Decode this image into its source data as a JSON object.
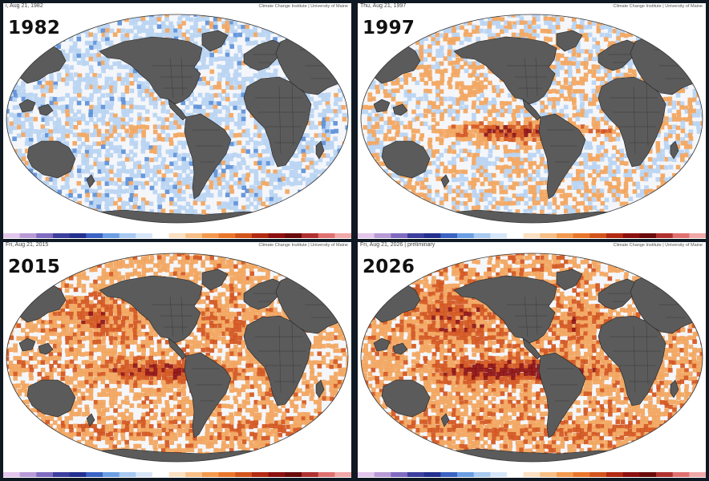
{
  "panels": [
    {
      "year": "1982",
      "date_text": "i, Aug 21, 1982",
      "credit": "Climate Change Institute | University of Maine",
      "anomaly": {
        "el_nino_strength": 0.25,
        "global_warm": 0.05
      }
    },
    {
      "year": "1997",
      "date_text": "Thu, Aug 21, 1997",
      "credit": "Climate Change Institute | University of Maine",
      "anomaly": {
        "el_nino_strength": 0.85,
        "global_warm": 0.3
      }
    },
    {
      "year": "2015",
      "date_text": "Fri, Aug 21, 2015",
      "credit": "Climate Change Institute | University of Maine",
      "anomaly": {
        "el_nino_strength": 0.7,
        "global_warm": 0.7
      }
    },
    {
      "year": "2026",
      "date_text": "Fri, Aug 21, 2026 | preliminary",
      "credit": "Climate Change Institute | University of Maine",
      "anomaly": {
        "el_nino_strength": 0.95,
        "global_warm": 0.8
      }
    }
  ],
  "colors": {
    "land": "#5b5b5b",
    "border": "#222222",
    "cold_strong": "#23308f",
    "cold": "#5b8fd8",
    "cool": "#b7d3f2",
    "neutral": "#f4f6fa",
    "warm": "#f2a45c",
    "hot": "#d2541c",
    "extreme": "#8c0f0f"
  },
  "colorbar": [
    "#e3c6ec",
    "#b89ad6",
    "#7f6bc0",
    "#3d3f9e",
    "#23308f",
    "#3b63c4",
    "#6b9ee2",
    "#a8c9f0",
    "#d6e6f8",
    "#ffffff",
    "#fbe0c2",
    "#f7be86",
    "#f39a4f",
    "#e9762b",
    "#d2541c",
    "#b32a12",
    "#8c0f0f",
    "#6a0a0a",
    "#b03030",
    "#e07070",
    "#f0a8a8"
  ]
}
